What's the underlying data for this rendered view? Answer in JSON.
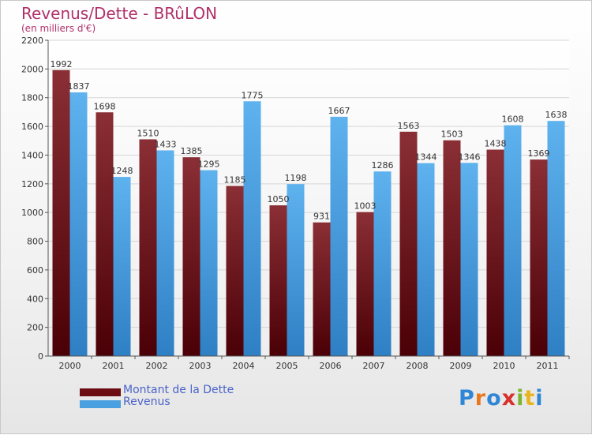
{
  "header": {
    "title": "Revenus/Dette - BRûLON",
    "subtitle": "(en milliers d'€)"
  },
  "legend": {
    "items": [
      {
        "label": "Montant de la Dette",
        "color": "#6b0d12"
      },
      {
        "label": "Revenus",
        "color": "#4a9fe0"
      }
    ]
  },
  "logo": {
    "text": "Proxiti",
    "colors": [
      "#2f86d6",
      "#e8781e",
      "#2f86d6",
      "#d8302a",
      "#7ab62e",
      "#e8b51e",
      "#2f86d6"
    ]
  },
  "chart_data": {
    "type": "bar",
    "title": "Revenus/Dette - BRûLON",
    "ylabel": "(en milliers d'€)",
    "xlabel": "",
    "categories": [
      "2000",
      "2001",
      "2002",
      "2003",
      "2004",
      "2005",
      "2006",
      "2007",
      "2008",
      "2009",
      "2010",
      "2011"
    ],
    "series": [
      {
        "name": "Montant de la Dette",
        "values": [
          1992,
          1698,
          1510,
          1385,
          1185,
          1050,
          931,
          1003,
          1563,
          1503,
          1438,
          1369
        ],
        "color": "#6b0d12"
      },
      {
        "name": "Revenus",
        "values": [
          1837,
          1248,
          1433,
          1295,
          1775,
          1198,
          1667,
          1286,
          1344,
          1346,
          1608,
          1638
        ],
        "color": "#4a9fe0"
      }
    ],
    "ylim": [
      0,
      2200
    ],
    "yticks": [
      0,
      200,
      400,
      600,
      800,
      1000,
      1200,
      1400,
      1600,
      1800,
      2000,
      2200
    ],
    "grid": true,
    "legend_position": "bottom-left"
  }
}
